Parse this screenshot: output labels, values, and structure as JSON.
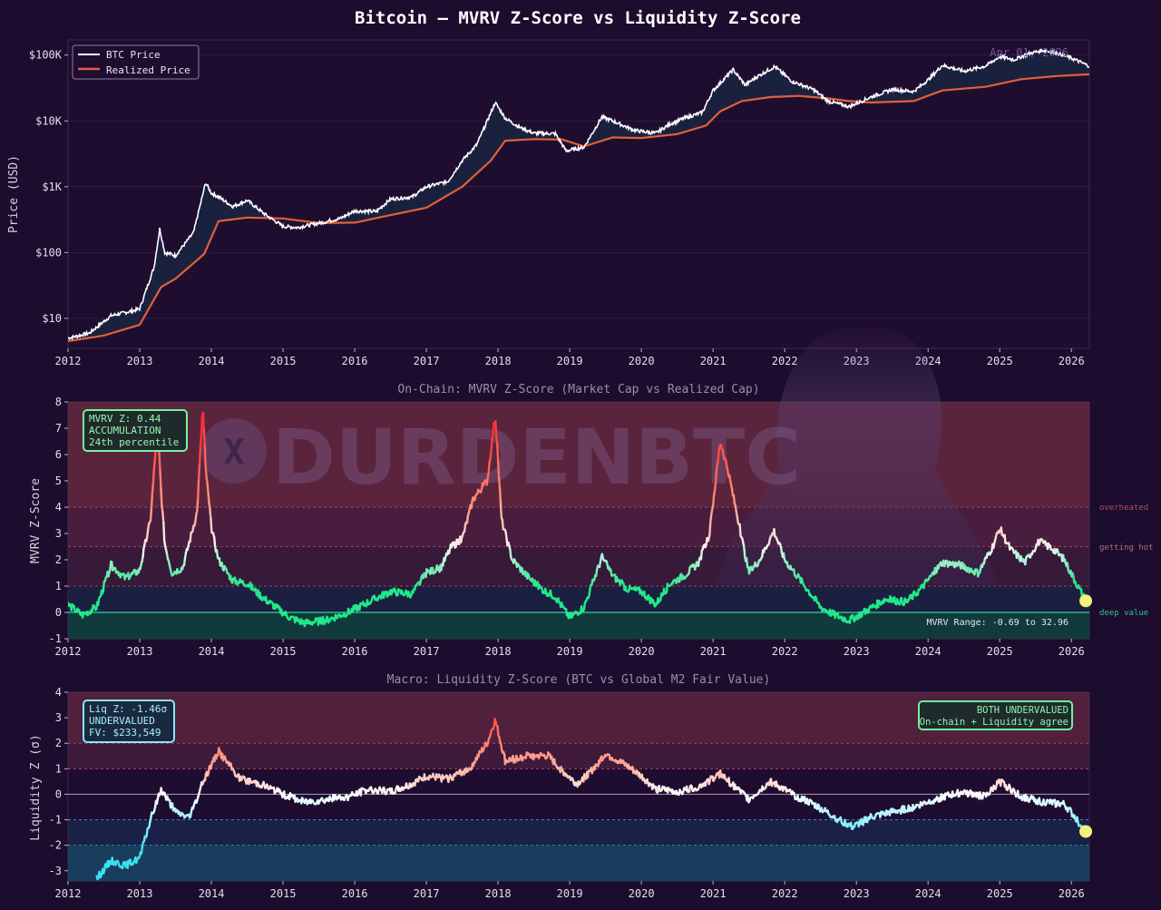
{
  "title": "Bitcoin — MVRV Z-Score vs Liquidity Z-Score",
  "date_label": "Apr 01, 2026",
  "watermark": {
    "handle": "DURDENBTC",
    "icon": "x-logo-icon"
  },
  "colors": {
    "background": "#1c0c2d",
    "plot_bg": "#1f0d30",
    "btc_price": "#ffffff",
    "realized_price": "#e0603a",
    "deep_value": "#1fd89a",
    "overheated": "#ff4040",
    "liq_low": "#44e0f0",
    "accent_box_green": "#7af0a0",
    "accent_box_cyan": "#88e6ff",
    "marker": "#f5f07a"
  },
  "x_ticks": [
    "2012",
    "2013",
    "2014",
    "2015",
    "2016",
    "2017",
    "2018",
    "2019",
    "2020",
    "2021",
    "2022",
    "2023",
    "2024",
    "2025",
    "2026"
  ],
  "chart_data": [
    {
      "type": "line",
      "title": "",
      "ylabel": "Price (USD)",
      "y_scale": "log",
      "ylim": [
        3.5,
        170000
      ],
      "xlim": [
        2012.0,
        2026.25
      ],
      "y_ticks": [
        "$10",
        "$100",
        "$1K",
        "$10K",
        "$100K"
      ],
      "legend": {
        "position": "top-left",
        "entries": [
          "BTC Price",
          "Realized Price"
        ]
      },
      "series": [
        {
          "name": "BTC Price",
          "x": [
            2012.0,
            2012.3,
            2012.6,
            2012.9,
            2013.0,
            2013.2,
            2013.28,
            2013.35,
            2013.5,
            2013.75,
            2013.92,
            2014.0,
            2014.1,
            2014.3,
            2014.5,
            2014.75,
            2015.0,
            2015.2,
            2015.5,
            2015.8,
            2016.0,
            2016.3,
            2016.5,
            2016.8,
            2017.0,
            2017.3,
            2017.5,
            2017.7,
            2017.85,
            2017.96,
            2018.1,
            2018.3,
            2018.5,
            2018.8,
            2018.95,
            2019.2,
            2019.45,
            2019.6,
            2019.9,
            2020.2,
            2020.4,
            2020.6,
            2020.85,
            2021.0,
            2021.28,
            2021.45,
            2021.6,
            2021.86,
            2022.1,
            2022.4,
            2022.6,
            2022.9,
            2023.2,
            2023.5,
            2023.8,
            2024.0,
            2024.2,
            2024.5,
            2024.8,
            2025.0,
            2025.2,
            2025.4,
            2025.6,
            2025.8,
            2026.0,
            2026.25
          ],
          "y": [
            5,
            6,
            11,
            13,
            14,
            60,
            230,
            100,
            90,
            200,
            1150,
            800,
            700,
            500,
            620,
            380,
            250,
            240,
            280,
            330,
            430,
            420,
            650,
            700,
            1000,
            1200,
            2500,
            4300,
            10000,
            19000,
            11000,
            8000,
            6500,
            6400,
            3500,
            4000,
            11500,
            10000,
            7200,
            6500,
            9000,
            11000,
            13500,
            29000,
            60000,
            35000,
            46000,
            67000,
            40000,
            30000,
            20000,
            16500,
            23000,
            30000,
            28000,
            42000,
            70000,
            57000,
            68000,
            95000,
            85000,
            105000,
            118000,
            108000,
            90000,
            68000
          ]
        },
        {
          "name": "Realized Price",
          "x": [
            2012.0,
            2012.5,
            2013.0,
            2013.3,
            2013.5,
            2013.9,
            2014.1,
            2014.5,
            2015.0,
            2015.5,
            2016.0,
            2016.5,
            2017.0,
            2017.5,
            2017.9,
            2018.1,
            2018.5,
            2018.9,
            2019.2,
            2019.6,
            2020.0,
            2020.5,
            2020.9,
            2021.1,
            2021.4,
            2021.8,
            2022.2,
            2022.6,
            2022.9,
            2023.2,
            2023.8,
            2024.2,
            2024.8,
            2025.3,
            2025.8,
            2026.25
          ],
          "y": [
            4.5,
            5.5,
            8,
            30,
            40,
            95,
            300,
            340,
            330,
            280,
            285,
            370,
            480,
            1000,
            2500,
            5000,
            5300,
            5200,
            4100,
            5600,
            5500,
            6300,
            8500,
            14000,
            20000,
            23000,
            24000,
            22000,
            20000,
            19000,
            20000,
            29000,
            33000,
            43000,
            48000,
            51000
          ]
        }
      ]
    },
    {
      "type": "line",
      "title": "On-Chain: MVRV Z-Score  (Market Cap vs Realized Cap)",
      "ylabel": "MVRV Z-Score",
      "ylim": [
        -1,
        8
      ],
      "xlim": [
        2012.0,
        2026.25
      ],
      "y_ticks": [
        "-1",
        "0",
        "1",
        "2",
        "3",
        "4",
        "5",
        "6",
        "7",
        "8"
      ],
      "zone_labels": [
        "overheated",
        "getting hot",
        "deep value"
      ],
      "thresholds": [
        4,
        2.5,
        1,
        0
      ],
      "info_box": [
        "MVRV Z: 0.44",
        "ACCUMULATION",
        "24th percentile"
      ],
      "range_note": "MVRV Range: -0.69 to 32.96",
      "series": [
        {
          "name": "",
          "x": [
            2012.0,
            2012.2,
            2012.4,
            2012.6,
            2012.8,
            2013.0,
            2013.15,
            2013.25,
            2013.3,
            2013.35,
            2013.45,
            2013.6,
            2013.8,
            2013.88,
            2013.92,
            2014.0,
            2014.1,
            2014.3,
            2014.5,
            2014.7,
            2014.9,
            2015.1,
            2015.3,
            2015.6,
            2015.9,
            2016.2,
            2016.5,
            2016.8,
            2017.0,
            2017.2,
            2017.35,
            2017.5,
            2017.65,
            2017.85,
            2017.96,
            2018.05,
            2018.2,
            2018.4,
            2018.6,
            2018.8,
            2019.0,
            2019.2,
            2019.45,
            2019.6,
            2019.8,
            2020.0,
            2020.2,
            2020.4,
            2020.6,
            2020.8,
            2020.95,
            2021.1,
            2021.2,
            2021.35,
            2021.5,
            2021.65,
            2021.85,
            2022.0,
            2022.2,
            2022.5,
            2022.7,
            2022.9,
            2023.1,
            2023.4,
            2023.7,
            2023.9,
            2024.2,
            2024.45,
            2024.7,
            2024.9,
            2025.0,
            2025.15,
            2025.35,
            2025.55,
            2025.75,
            2025.9,
            2026.05,
            2026.2
          ],
          "y": [
            0.3,
            -0.1,
            0.2,
            1.8,
            1.3,
            1.6,
            3.5,
            7.2,
            4.5,
            2.6,
            1.5,
            1.7,
            3.8,
            7.8,
            5.5,
            3.2,
            2.0,
            1.2,
            1.1,
            0.6,
            0.2,
            -0.2,
            -0.4,
            -0.3,
            0.0,
            0.4,
            0.8,
            0.7,
            1.5,
            1.7,
            2.5,
            2.8,
            4.3,
            5.0,
            7.5,
            3.5,
            2.0,
            1.4,
            0.9,
            0.6,
            -0.2,
            0.2,
            2.1,
            1.4,
            0.9,
            0.8,
            0.3,
            1.1,
            1.4,
            1.9,
            3.0,
            6.5,
            5.5,
            3.5,
            1.5,
            2.0,
            3.1,
            2.0,
            1.3,
            0.2,
            -0.1,
            -0.3,
            0.0,
            0.5,
            0.4,
            0.9,
            1.9,
            1.8,
            1.5,
            2.5,
            3.2,
            2.4,
            1.9,
            2.7,
            2.4,
            2.0,
            1.2,
            0.44
          ]
        }
      ]
    },
    {
      "type": "line",
      "title": "Macro: Liquidity Z-Score  (BTC vs Global M2 Fair Value)",
      "ylabel": "Liquidity Z (σ)",
      "ylim": [
        -3.4,
        4
      ],
      "xlim": [
        2012.0,
        2026.25
      ],
      "y_ticks": [
        "-3",
        "-2",
        "-1",
        "0",
        "1",
        "2",
        "3",
        "4"
      ],
      "thresholds": [
        2,
        1,
        0,
        -1,
        -2
      ],
      "info_box": [
        "Liq Z: -1.46σ",
        "UNDERVALUED",
        "FV: $233,549"
      ],
      "status_box": [
        "BOTH UNDERVALUED",
        "On-chain + Liquidity agree"
      ],
      "series": [
        {
          "name": "",
          "x": [
            2012.4,
            2012.6,
            2012.8,
            2013.0,
            2013.15,
            2013.3,
            2013.5,
            2013.7,
            2013.9,
            2014.1,
            2014.4,
            2014.7,
            2015.0,
            2015.3,
            2015.6,
            2015.9,
            2016.2,
            2016.5,
            2016.8,
            2017.0,
            2017.3,
            2017.6,
            2017.85,
            2017.96,
            2018.1,
            2018.4,
            2018.7,
            2018.9,
            2019.1,
            2019.3,
            2019.5,
            2019.8,
            2020.0,
            2020.2,
            2020.5,
            2020.8,
            2021.1,
            2021.3,
            2021.5,
            2021.8,
            2022.1,
            2022.4,
            2022.7,
            2022.95,
            2023.2,
            2023.5,
            2023.8,
            2024.1,
            2024.5,
            2024.8,
            2025.0,
            2025.3,
            2025.6,
            2025.9,
            2026.05,
            2026.2
          ],
          "y": [
            -3.3,
            -2.6,
            -2.8,
            -2.5,
            -1.0,
            0.2,
            -0.7,
            -0.9,
            0.6,
            1.7,
            0.6,
            0.4,
            0.0,
            -0.3,
            -0.2,
            -0.1,
            0.2,
            0.1,
            0.4,
            0.7,
            0.6,
            1.0,
            2.0,
            2.9,
            1.3,
            1.5,
            1.5,
            0.9,
            0.4,
            0.9,
            1.6,
            1.1,
            0.7,
            0.2,
            0.1,
            0.3,
            0.8,
            0.3,
            -0.2,
            0.5,
            0.0,
            -0.4,
            -0.9,
            -1.3,
            -0.9,
            -0.7,
            -0.5,
            -0.2,
            0.1,
            -0.1,
            0.5,
            -0.1,
            -0.3,
            -0.4,
            -0.9,
            -1.46
          ]
        }
      ]
    }
  ]
}
